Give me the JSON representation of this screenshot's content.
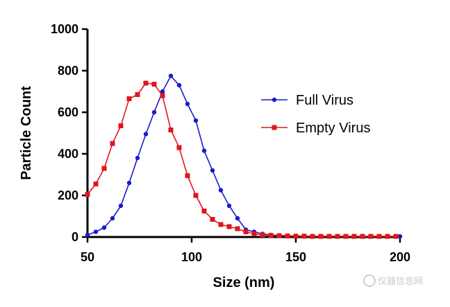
{
  "chart_data": {
    "type": "line",
    "xlabel": "Size (nm)",
    "ylabel": "Particle Count",
    "xlim": [
      50,
      200
    ],
    "ylim": [
      0,
      1000
    ],
    "x_ticks": [
      "50",
      "100",
      "150",
      "200"
    ],
    "y_ticks": [
      "0",
      "200",
      "400",
      "600",
      "800",
      "1000"
    ],
    "grid": false,
    "legend_position": "right",
    "series": [
      {
        "name": "Full Virus",
        "color": "#1a1acc",
        "marker": "circle",
        "x": [
          50,
          54,
          58,
          62,
          66,
          70,
          74,
          78,
          82,
          86,
          90,
          94,
          98,
          102,
          106,
          110,
          114,
          118,
          122,
          126,
          130,
          134,
          138,
          142,
          146,
          150,
          154,
          158,
          162,
          166,
          170,
          174,
          178,
          182,
          186,
          190,
          194,
          198,
          200
        ],
        "y": [
          10,
          25,
          45,
          90,
          150,
          260,
          380,
          495,
          600,
          700,
          775,
          730,
          640,
          560,
          415,
          320,
          225,
          150,
          90,
          35,
          25,
          15,
          10,
          8,
          6,
          5,
          5,
          4,
          4,
          4,
          4,
          3,
          3,
          3,
          3,
          3,
          3,
          3,
          3
        ]
      },
      {
        "name": "Empty Virus",
        "color": "#e0161b",
        "marker": "square",
        "x": [
          50,
          54,
          58,
          62,
          66,
          70,
          74,
          78,
          82,
          86,
          90,
          94,
          98,
          102,
          106,
          110,
          114,
          118,
          122,
          126,
          130,
          134,
          138,
          142,
          146,
          150,
          154,
          158,
          162,
          166,
          170,
          174,
          178,
          182,
          186,
          190,
          194,
          198
        ],
        "y": [
          205,
          255,
          330,
          450,
          535,
          665,
          685,
          740,
          735,
          680,
          515,
          430,
          295,
          200,
          125,
          85,
          60,
          50,
          40,
          25,
          15,
          10,
          8,
          6,
          5,
          4,
          4,
          3,
          3,
          3,
          3,
          3,
          3,
          3,
          3,
          3,
          3,
          3
        ]
      }
    ]
  },
  "watermark": "仪器信息网"
}
